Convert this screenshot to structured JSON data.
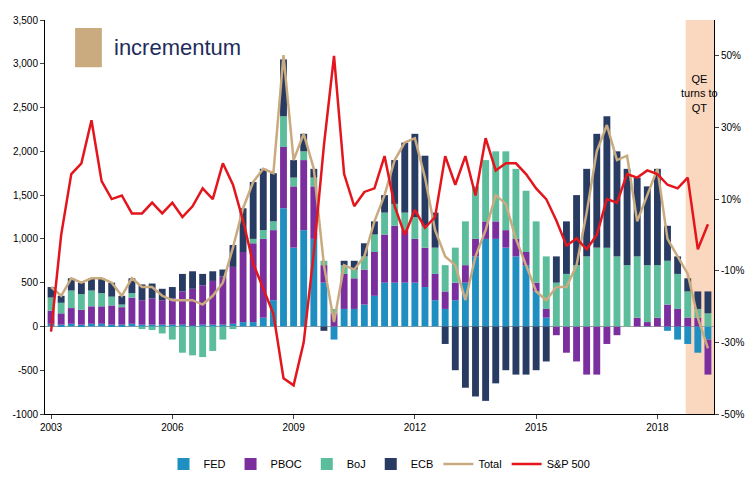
{
  "chart_data": {
    "type": "bar",
    "stacked": true,
    "grid": false,
    "legend": "bottom",
    "annotations": [
      {
        "text": "incrementum"
      },
      {
        "text": "QE\nturns to\nQT",
        "x0": 2018.7,
        "x1": 2019.4,
        "color": "#fad7bf"
      }
    ],
    "x": [
      2003,
      2003.25,
      2003.5,
      2003.75,
      2004,
      2004.25,
      2004.5,
      2004.75,
      2005,
      2005.25,
      2005.5,
      2005.75,
      2006,
      2006.25,
      2006.5,
      2006.75,
      2007,
      2007.25,
      2007.5,
      2007.75,
      2008,
      2008.25,
      2008.5,
      2008.75,
      2009,
      2009.25,
      2009.5,
      2009.75,
      2010,
      2010.25,
      2010.5,
      2010.75,
      2011,
      2011.25,
      2011.5,
      2011.75,
      2012,
      2012.25,
      2012.5,
      2012.75,
      2013,
      2013.25,
      2013.5,
      2013.75,
      2014,
      2014.25,
      2014.5,
      2014.75,
      2015,
      2015.25,
      2015.5,
      2015.75,
      2016,
      2016.25,
      2016.5,
      2016.75,
      2017,
      2017.25,
      2017.5,
      2017.75,
      2018,
      2018.25,
      2018.5,
      2018.75,
      2019,
      2019.25
    ],
    "xlim": [
      2002.85,
      2019.4
    ],
    "xticks": [
      2003,
      2006,
      2009,
      2012,
      2015,
      2018
    ],
    "ylim": [
      -1000,
      3500
    ],
    "yticks": [
      -1000,
      -500,
      0,
      500,
      {
        "value": 1000,
        "label": "1,000"
      },
      {
        "value": 1500,
        "label": "1,500"
      },
      {
        "value": 2000,
        "label": "2,000"
      },
      {
        "value": 2500,
        "label": "2,500"
      },
      {
        "value": 3000,
        "label": "3,000"
      },
      {
        "value": 3500,
        "label": "3,500"
      }
    ],
    "y2lim": [
      -50,
      60
    ],
    "y2ticks": [
      {
        "value": -50,
        "label": "-50%"
      },
      {
        "value": -30,
        "label": "-30%"
      },
      {
        "value": -10,
        "label": "-10%"
      },
      {
        "value": 10,
        "label": "10%"
      },
      {
        "value": 30,
        "label": "30%"
      },
      {
        "value": 50,
        "label": "50%"
      }
    ],
    "series": [
      {
        "name": "FED",
        "type": "bar",
        "color": "#1f8fc2",
        "values": [
          30,
          20,
          30,
          20,
          30,
          30,
          20,
          20,
          30,
          20,
          20,
          20,
          20,
          20,
          10,
          20,
          20,
          20,
          30,
          50,
          50,
          100,
          300,
          1350,
          900,
          1100,
          1000,
          500,
          -150,
          200,
          200,
          250,
          350,
          500,
          500,
          500,
          500,
          450,
          300,
          200,
          300,
          500,
          800,
          1000,
          1000,
          900,
          800,
          700,
          400,
          100,
          0,
          0,
          0,
          0,
          0,
          0,
          0,
          0,
          0,
          0,
          0,
          -50,
          -150,
          -200,
          -300,
          -150
        ]
      },
      {
        "name": "PBOC",
        "type": "bar",
        "color": "#7b2f9f",
        "values": [
          150,
          130,
          180,
          170,
          200,
          200,
          220,
          200,
          300,
          280,
          300,
          280,
          300,
          380,
          420,
          450,
          500,
          550,
          650,
          800,
          900,
          900,
          800,
          700,
          700,
          800,
          600,
          200,
          150,
          400,
          350,
          400,
          500,
          550,
          650,
          600,
          500,
          450,
          300,
          200,
          200,
          200,
          200,
          200,
          200,
          200,
          200,
          150,
          100,
          100,
          -100,
          -300,
          -400,
          -550,
          -550,
          -200,
          -100,
          0,
          100,
          50,
          100,
          250,
          200,
          100,
          100,
          -400
        ]
      },
      {
        "name": "BoJ",
        "type": "bar",
        "color": "#5bbd9b",
        "values": [
          150,
          120,
          200,
          180,
          180,
          150,
          100,
          30,
          50,
          -30,
          -40,
          -80,
          -150,
          -300,
          -330,
          -350,
          -280,
          -150,
          -30,
          0,
          50,
          100,
          100,
          350,
          100,
          100,
          100,
          50,
          50,
          100,
          100,
          150,
          200,
          250,
          250,
          200,
          250,
          250,
          300,
          300,
          400,
          500,
          600,
          700,
          800,
          900,
          800,
          700,
          700,
          600,
          500,
          600,
          700,
          800,
          900,
          900,
          800,
          700,
          700,
          650,
          600,
          500,
          400,
          300,
          100,
          150
        ]
      },
      {
        "name": "ECB",
        "type": "bar",
        "color": "#283b63",
        "values": [
          120,
          80,
          140,
          130,
          140,
          170,
          160,
          100,
          170,
          180,
          170,
          130,
          130,
          200,
          200,
          130,
          110,
          80,
          250,
          500,
          650,
          700,
          550,
          650,
          200,
          200,
          100,
          -50,
          0,
          50,
          100,
          150,
          150,
          200,
          500,
          800,
          950,
          800,
          400,
          -200,
          -500,
          -700,
          -800,
          -850,
          -650,
          -500,
          -550,
          -550,
          -500,
          -400,
          300,
          600,
          800,
          1000,
          1300,
          1500,
          1200,
          1100,
          900,
          900,
          1100,
          400,
          200,
          150,
          200,
          250
        ]
      },
      {
        "name": "Total",
        "type": "line",
        "color": "#c9ab7f",
        "values": [
          450,
          350,
          550,
          500,
          550,
          550,
          500,
          350,
          550,
          450,
          450,
          350,
          300,
          300,
          300,
          250,
          350,
          500,
          900,
          1350,
          1650,
          1800,
          1750,
          3100,
          1900,
          2200,
          1800,
          700,
          50,
          700,
          650,
          800,
          1200,
          1500,
          1900,
          2100,
          2150,
          1700,
          1100,
          800,
          700,
          300,
          800,
          1100,
          1500,
          1400,
          1000,
          700,
          400,
          300,
          450,
          450,
          700,
          1300,
          2000,
          2300,
          1900,
          1950,
          1200,
          1500,
          1800,
          1000,
          800,
          600,
          100,
          -250
        ]
      },
      {
        "name": "S&P 500",
        "type": "line",
        "axis": "y2",
        "color": "#e3161e",
        "values": [
          -27,
          0,
          17,
          20,
          32,
          15,
          10,
          11,
          6,
          6,
          9,
          6,
          9,
          5,
          8,
          13,
          10,
          20,
          14,
          4,
          -8,
          -15,
          -22,
          -40,
          -42,
          -30,
          -5,
          25,
          50,
          17,
          8,
          12,
          13,
          22,
          8,
          0,
          7,
          2,
          5,
          22,
          14,
          22,
          11,
          27,
          18,
          20,
          20,
          17,
          13,
          10,
          4,
          -3,
          -1,
          -4,
          0,
          10,
          9,
          17,
          16,
          18,
          17,
          14,
          13,
          16,
          -4,
          3
        ]
      }
    ]
  }
}
